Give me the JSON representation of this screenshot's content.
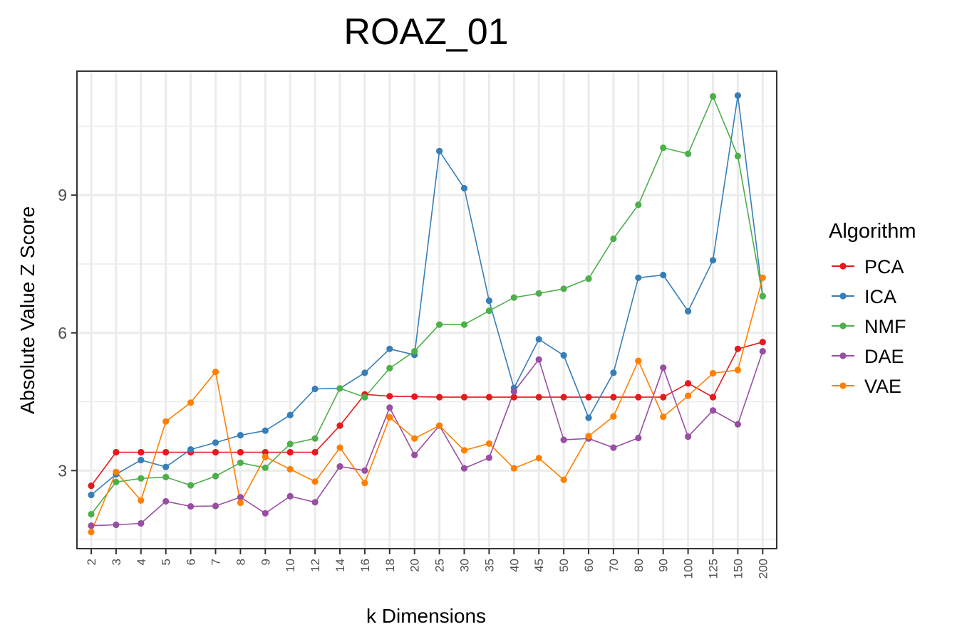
{
  "chart_data": {
    "type": "line",
    "title": "ROAZ_01",
    "xlabel": "k Dimensions",
    "ylabel": "Absolute Value Z Score",
    "categories": [
      "2",
      "3",
      "4",
      "5",
      "6",
      "7",
      "8",
      "9",
      "10",
      "12",
      "14",
      "16",
      "18",
      "20",
      "25",
      "30",
      "35",
      "40",
      "45",
      "50",
      "60",
      "70",
      "80",
      "90",
      "100",
      "125",
      "150",
      "200"
    ],
    "ylim": [
      1.3,
      11.7
    ],
    "yticks": [
      3,
      6,
      9
    ],
    "ytick_labels": [
      "3",
      "6",
      "9"
    ],
    "grid": true,
    "legend": {
      "title": "Algorithm",
      "position": "right"
    },
    "series": [
      {
        "name": "PCA",
        "color": "#e41a1c",
        "values": [
          2.67,
          3.4,
          3.4,
          3.4,
          3.4,
          3.4,
          3.4,
          3.4,
          3.4,
          3.4,
          3.98,
          4.66,
          4.62,
          4.61,
          4.6,
          4.6,
          4.6,
          4.6,
          4.6,
          4.6,
          4.6,
          4.6,
          4.6,
          4.6,
          4.9,
          4.6,
          5.65,
          5.8
        ]
      },
      {
        "name": "ICA",
        "color": "#377eb8",
        "values": [
          2.47,
          2.92,
          3.23,
          3.08,
          3.46,
          3.61,
          3.77,
          3.87,
          4.21,
          4.78,
          4.79,
          5.13,
          5.65,
          5.52,
          9.96,
          9.15,
          6.7,
          4.8,
          5.86,
          5.51,
          4.15,
          5.13,
          7.2,
          7.26,
          6.47,
          7.58,
          11.17,
          6.8
        ]
      },
      {
        "name": "NMF",
        "color": "#4daf4a",
        "values": [
          2.05,
          2.75,
          2.83,
          2.86,
          2.68,
          2.88,
          3.17,
          3.06,
          3.58,
          3.7,
          4.79,
          4.6,
          5.23,
          5.6,
          6.18,
          6.18,
          6.48,
          6.77,
          6.86,
          6.96,
          7.18,
          8.05,
          8.79,
          10.03,
          9.9,
          11.15,
          9.85,
          6.8
        ]
      },
      {
        "name": "DAE",
        "color": "#984ea3",
        "values": [
          1.8,
          1.82,
          1.85,
          2.33,
          2.22,
          2.23,
          2.42,
          2.07,
          2.44,
          2.31,
          3.09,
          3.0,
          4.37,
          3.34,
          3.98,
          3.05,
          3.28,
          4.72,
          5.42,
          3.67,
          3.7,
          3.5,
          3.71,
          5.24,
          3.74,
          4.31,
          4.01,
          5.6
        ]
      },
      {
        "name": "VAE",
        "color": "#ff7f00",
        "values": [
          1.66,
          2.97,
          2.35,
          4.07,
          4.48,
          5.15,
          2.3,
          3.3,
          3.03,
          2.76,
          3.5,
          2.73,
          4.16,
          3.7,
          3.98,
          3.44,
          3.59,
          3.05,
          3.27,
          2.8,
          3.75,
          4.18,
          5.39,
          4.17,
          4.63,
          5.12,
          5.19,
          7.2
        ]
      }
    ]
  }
}
